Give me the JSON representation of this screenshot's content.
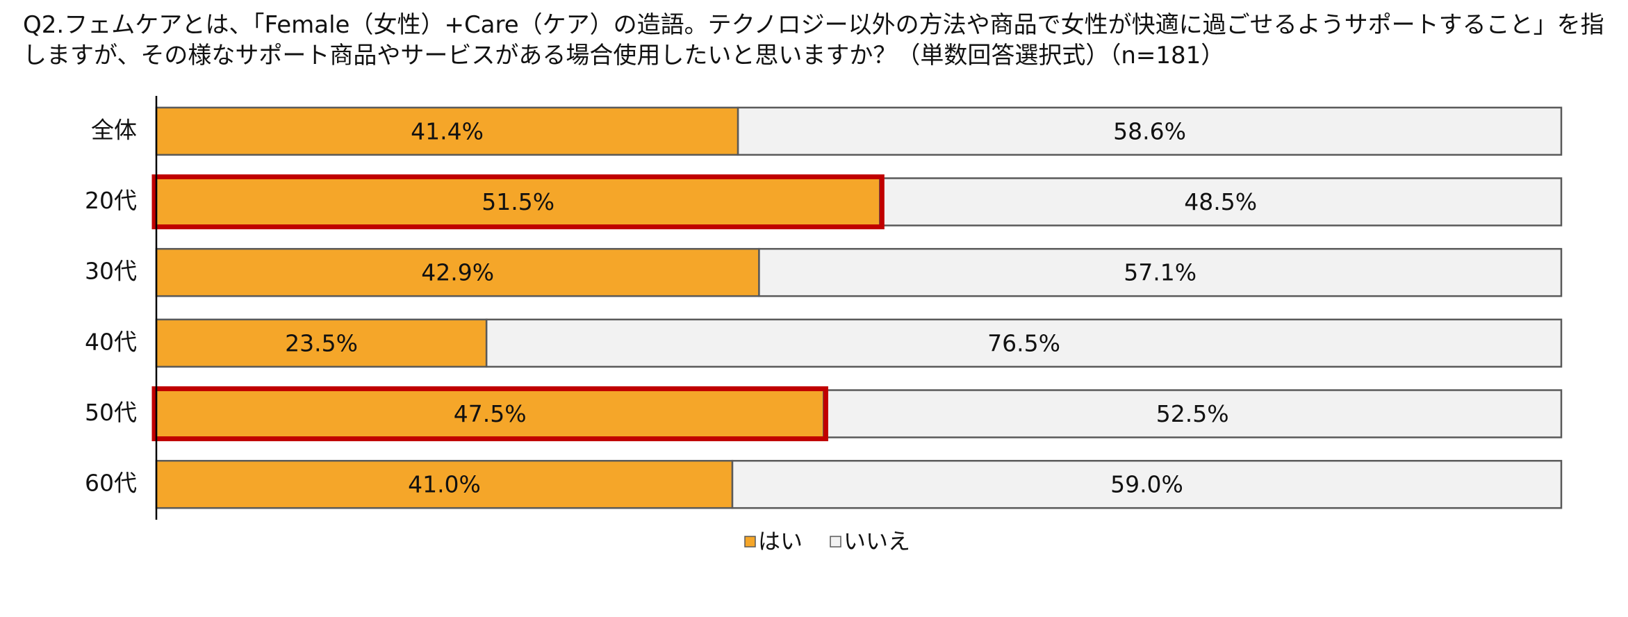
{
  "chart_data": {
    "type": "stacked-bar-horizontal",
    "title": "Q2.フェムケアとは、「Female（女性）+Care（ケア）の造語。テクノロジー以外の方法や商品で女性が快適に過ごせるようサポートすること」を指しますが、その様なサポート商品やサービスがある場合使用したいと思いますか？（単数回答選択式）（n=181）",
    "categories": [
      "全体",
      "20代",
      "30代",
      "40代",
      "50代",
      "60代"
    ],
    "series": [
      {
        "name": "はい",
        "color": "#F5A629",
        "values": [
          41.4,
          51.5,
          42.9,
          23.5,
          47.5,
          41.0
        ],
        "value_labels": [
          "41.4%",
          "51.5%",
          "42.9%",
          "23.5%",
          "47.5%",
          "41.0%"
        ]
      },
      {
        "name": "いいえ",
        "color": "#F2F2F2",
        "values": [
          58.6,
          48.5,
          57.1,
          76.5,
          52.5,
          59.0
        ],
        "value_labels": [
          "58.6%",
          "48.5%",
          "57.1%",
          "76.5%",
          "52.5%",
          "59.0%"
        ]
      }
    ],
    "highlight": [
      1,
      4
    ],
    "highlight_color": "#C00000",
    "legend": "bottom"
  }
}
